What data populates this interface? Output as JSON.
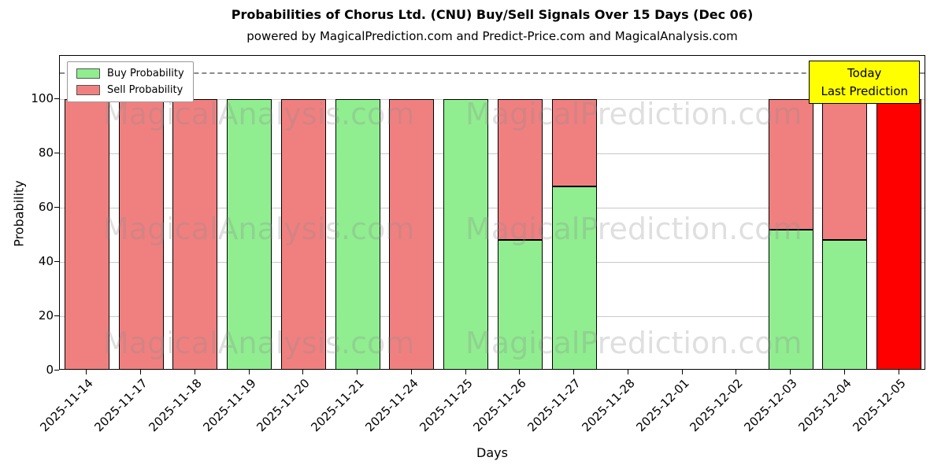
{
  "title": "Probabilities of Chorus Ltd. (CNU) Buy/Sell Signals Over 15 Days (Dec 06)",
  "subtitle": "powered by MagicalPrediction.com and Predict-Price.com and MagicalAnalysis.com",
  "legend": {
    "buy_label": "Buy Probability",
    "sell_label": "Sell Probability"
  },
  "annotation": {
    "line1": "Today",
    "line2": "Last Prediction",
    "bg": "#ffff00"
  },
  "axes": {
    "xlabel": "Days",
    "ylabel": "Probability"
  },
  "watermarks": [
    "MagicalAnalysis.com",
    "MagicalPrediction.com"
  ],
  "colors": {
    "buy": "#90ee90",
    "sell": "#f08080",
    "today": "#ff0000",
    "grid": "#c9c9c9",
    "dashed": "#8a8a8a"
  },
  "chart_data": {
    "type": "bar",
    "stacked": true,
    "title": "Probabilities of Chorus Ltd. (CNU) Buy/Sell Signals Over 15 Days (Dec 06)",
    "xlabel": "Days",
    "ylabel": "Probability",
    "categories": [
      "2025-11-14",
      "2025-11-17",
      "2025-11-18",
      "2025-11-19",
      "2025-11-20",
      "2025-11-21",
      "2025-11-24",
      "2025-11-25",
      "2025-11-26",
      "2025-11-27",
      "2025-11-28",
      "2025-12-01",
      "2025-12-02",
      "2025-12-03",
      "2025-12-04",
      "2025-12-05"
    ],
    "series": [
      {
        "name": "Buy Probability",
        "color": "#90ee90",
        "values": [
          0,
          0,
          0,
          100,
          0,
          100,
          0,
          100,
          48,
          68,
          0,
          0,
          0,
          52,
          48,
          0
        ]
      },
      {
        "name": "Sell Probability",
        "color": "#f08080",
        "values": [
          100,
          100,
          100,
          0,
          100,
          0,
          100,
          0,
          52,
          32,
          0,
          0,
          0,
          48,
          52,
          100
        ]
      }
    ],
    "today_index": 15,
    "today_color": "#ff0000",
    "dashed_line_y": 110,
    "yticks": [
      0,
      20,
      40,
      60,
      80,
      100
    ],
    "ylim": [
      0,
      116
    ],
    "grid": true,
    "legend_position": "upper-left"
  }
}
